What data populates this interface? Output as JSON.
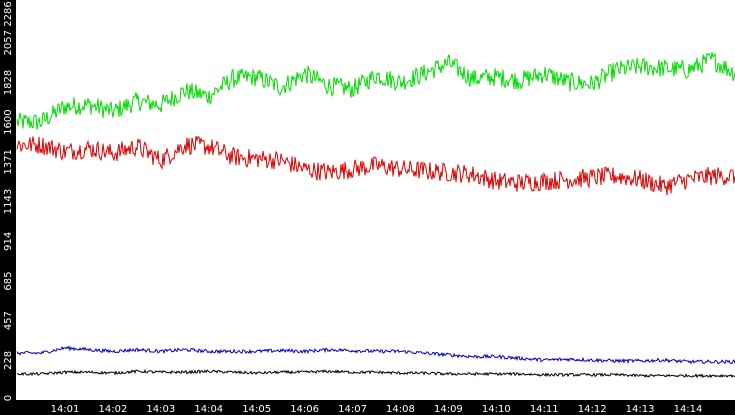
{
  "chart_data": {
    "type": "line",
    "title": "",
    "xlabel": "",
    "ylabel": "",
    "x_ticks": [
      "14:01",
      "14:02",
      "14:03",
      "14:04",
      "14:05",
      "14:06",
      "14:07",
      "14:08",
      "14:09",
      "14:10",
      "14:11",
      "14:12",
      "14:13",
      "14:14"
    ],
    "y_ticks": [
      "0",
      "228",
      "457",
      "685",
      "914",
      "1143",
      "1371",
      "1600",
      "1828",
      "2057",
      "2286"
    ],
    "ylim": [
      0,
      2286
    ],
    "grid": false,
    "background": "#ffffff",
    "axis_band_color": "#000000",
    "x": [
      "14:00:30",
      "14:01:00",
      "14:01:30",
      "14:02:00",
      "14:02:30",
      "14:03:00",
      "14:03:30",
      "14:04:00",
      "14:04:30",
      "14:05:00",
      "14:05:30",
      "14:06:00",
      "14:06:30",
      "14:07:00",
      "14:07:30",
      "14:08:00",
      "14:08:30",
      "14:09:00",
      "14:09:30",
      "14:10:00",
      "14:10:30",
      "14:11:00",
      "14:11:30",
      "14:12:00",
      "14:12:30",
      "14:13:00",
      "14:13:30",
      "14:14:00",
      "14:14:30",
      "14:15:00"
    ],
    "series": [
      {
        "color": "#00dd00",
        "values": [
          1600,
          1690,
          1700,
          1660,
          1720,
          1700,
          1780,
          1750,
          1850,
          1860,
          1800,
          1880,
          1810,
          1790,
          1870,
          1830,
          1880,
          1940,
          1850,
          1860,
          1840,
          1880,
          1830,
          1820,
          1900,
          1920,
          1910,
          1900,
          1960,
          1880
        ]
      },
      {
        "color": "#dd0000",
        "values": [
          1470,
          1430,
          1450,
          1420,
          1460,
          1380,
          1470,
          1460,
          1400,
          1390,
          1380,
          1330,
          1310,
          1330,
          1350,
          1330,
          1320,
          1310,
          1300,
          1260,
          1250,
          1260,
          1270,
          1280,
          1290,
          1270,
          1230,
          1270,
          1290,
          1290
        ]
      },
      {
        "color": "#0000bb",
        "values": [
          270,
          300,
          290,
          280,
          290,
          280,
          290,
          280,
          280,
          280,
          285,
          280,
          290,
          285,
          280,
          280,
          270,
          260,
          250,
          250,
          240,
          230,
          235,
          230,
          225,
          225,
          230,
          220,
          220,
          220
        ]
      },
      {
        "color": "#000000",
        "values": [
          150,
          160,
          160,
          155,
          165,
          160,
          160,
          165,
          160,
          155,
          160,
          160,
          165,
          160,
          160,
          155,
          155,
          150,
          150,
          150,
          150,
          145,
          145,
          145,
          145,
          140,
          140,
          140,
          140,
          140
        ]
      }
    ]
  }
}
